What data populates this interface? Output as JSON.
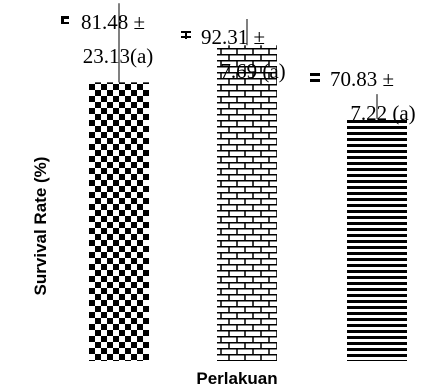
{
  "chart_data": {
    "type": "bar",
    "categories": [
      "",
      "",
      ""
    ],
    "values": [
      81.48,
      92.31,
      70.83
    ],
    "error": [
      23.13,
      7.69,
      7.22
    ],
    "annotations": [
      {
        "line1": "81.48 ±",
        "line2": "23.13(a)"
      },
      {
        "line1": "92.31 ±",
        "line2": "7.69 (a)"
      },
      {
        "line1": "70.83 ±",
        "line2": "7.22 (a)"
      }
    ],
    "patterns": [
      "checkerboard",
      "brick",
      "horizontal-lines"
    ],
    "title": "",
    "xlabel": "Perlakuan",
    "ylabel": "Survival Rate (%)",
    "ylim": [
      0,
      100
    ],
    "grid": false,
    "legend": "none"
  }
}
